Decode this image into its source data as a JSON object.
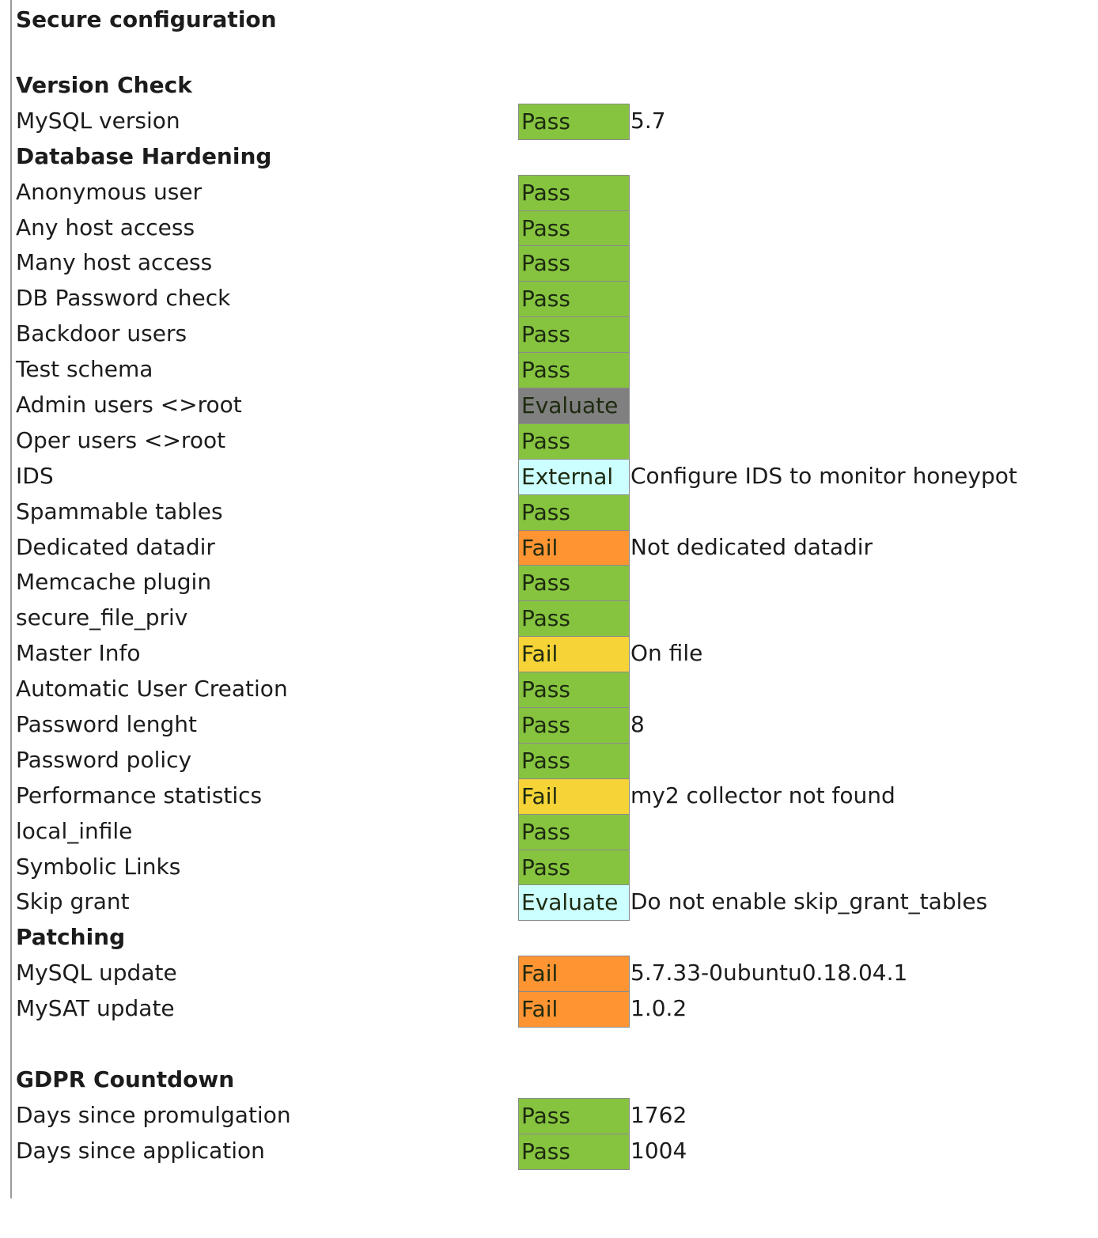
{
  "title": "Secure configuration",
  "status_colors": {
    "Pass": "#86c440",
    "Fail-orange": "#ff9433",
    "Fail-yellow": "#f6d336",
    "Evaluate-gray": "#808080",
    "External": "#ccffff",
    "Evaluate-cyan": "#ccffff"
  },
  "rows": [
    {
      "type": "section",
      "label": "Version Check"
    },
    {
      "type": "item",
      "label": "MySQL version",
      "status": "Pass",
      "color": "#86c440",
      "value": "5.7"
    },
    {
      "type": "section",
      "label": "Database Hardening"
    },
    {
      "type": "item",
      "label": "Anonymous user",
      "status": "Pass",
      "color": "#86c440",
      "value": ""
    },
    {
      "type": "item",
      "label": "Any host access",
      "status": "Pass",
      "color": "#86c440",
      "value": ""
    },
    {
      "type": "item",
      "label": "Many host access",
      "status": "Pass",
      "color": "#86c440",
      "value": ""
    },
    {
      "type": "item",
      "label": "DB Password check",
      "status": "Pass",
      "color": "#86c440",
      "value": ""
    },
    {
      "type": "item",
      "label": "Backdoor users",
      "status": "Pass",
      "color": "#86c440",
      "value": ""
    },
    {
      "type": "item",
      "label": "Test schema",
      "status": "Pass",
      "color": "#86c440",
      "value": ""
    },
    {
      "type": "item",
      "label": "Admin users <>root",
      "status": "Evaluate",
      "color": "#808080",
      "value": ""
    },
    {
      "type": "item",
      "label": "Oper users <>root",
      "status": "Pass",
      "color": "#86c440",
      "value": ""
    },
    {
      "type": "item",
      "label": "IDS",
      "status": "External",
      "color": "#ccffff",
      "value": "Configure IDS to monitor honeypot"
    },
    {
      "type": "item",
      "label": "Spammable tables",
      "status": "Pass",
      "color": "#86c440",
      "value": ""
    },
    {
      "type": "item",
      "label": "Dedicated datadir",
      "status": "Fail",
      "color": "#ff9433",
      "value": "Not dedicated datadir"
    },
    {
      "type": "item",
      "label": "Memcache plugin",
      "status": "Pass",
      "color": "#86c440",
      "value": ""
    },
    {
      "type": "item",
      "label": "secure_file_priv",
      "status": "Pass",
      "color": "#86c440",
      "value": ""
    },
    {
      "type": "item",
      "label": "Master Info",
      "status": "Fail",
      "color": "#f6d336",
      "value": "On file"
    },
    {
      "type": "item",
      "label": "Automatic User Creation",
      "status": "Pass",
      "color": "#86c440",
      "value": ""
    },
    {
      "type": "item",
      "label": "Password lenght",
      "status": "Pass",
      "color": "#86c440",
      "value": "8"
    },
    {
      "type": "item",
      "label": "Password policy",
      "status": "Pass",
      "color": "#86c440",
      "value": ""
    },
    {
      "type": "item",
      "label": "Performance statistics",
      "status": "Fail",
      "color": "#f6d336",
      "value": "my2 collector not found"
    },
    {
      "type": "item",
      "label": "local_infile",
      "status": "Pass",
      "color": "#86c440",
      "value": ""
    },
    {
      "type": "item",
      "label": "Symbolic Links",
      "status": "Pass",
      "color": "#86c440",
      "value": ""
    },
    {
      "type": "item",
      "label": "Skip grant",
      "status": "Evaluate",
      "color": "#ccffff",
      "value": "Do not enable skip_grant_tables"
    },
    {
      "type": "section",
      "label": "Patching"
    },
    {
      "type": "item",
      "label": "MySQL update",
      "status": "Fail",
      "color": "#ff9433",
      "value": "5.7.33-0ubuntu0.18.04.1"
    },
    {
      "type": "item",
      "label": "MySAT update",
      "status": "Fail",
      "color": "#ff9433",
      "value": "1.0.2"
    },
    {
      "type": "blank"
    },
    {
      "type": "section",
      "label": "GDPR Countdown"
    },
    {
      "type": "item",
      "label": "Days since promulgation",
      "status": "Pass",
      "color": "#86c440",
      "value": "1762"
    },
    {
      "type": "item",
      "label": "Days since application",
      "status": "Pass",
      "color": "#86c440",
      "value": "1004"
    }
  ]
}
